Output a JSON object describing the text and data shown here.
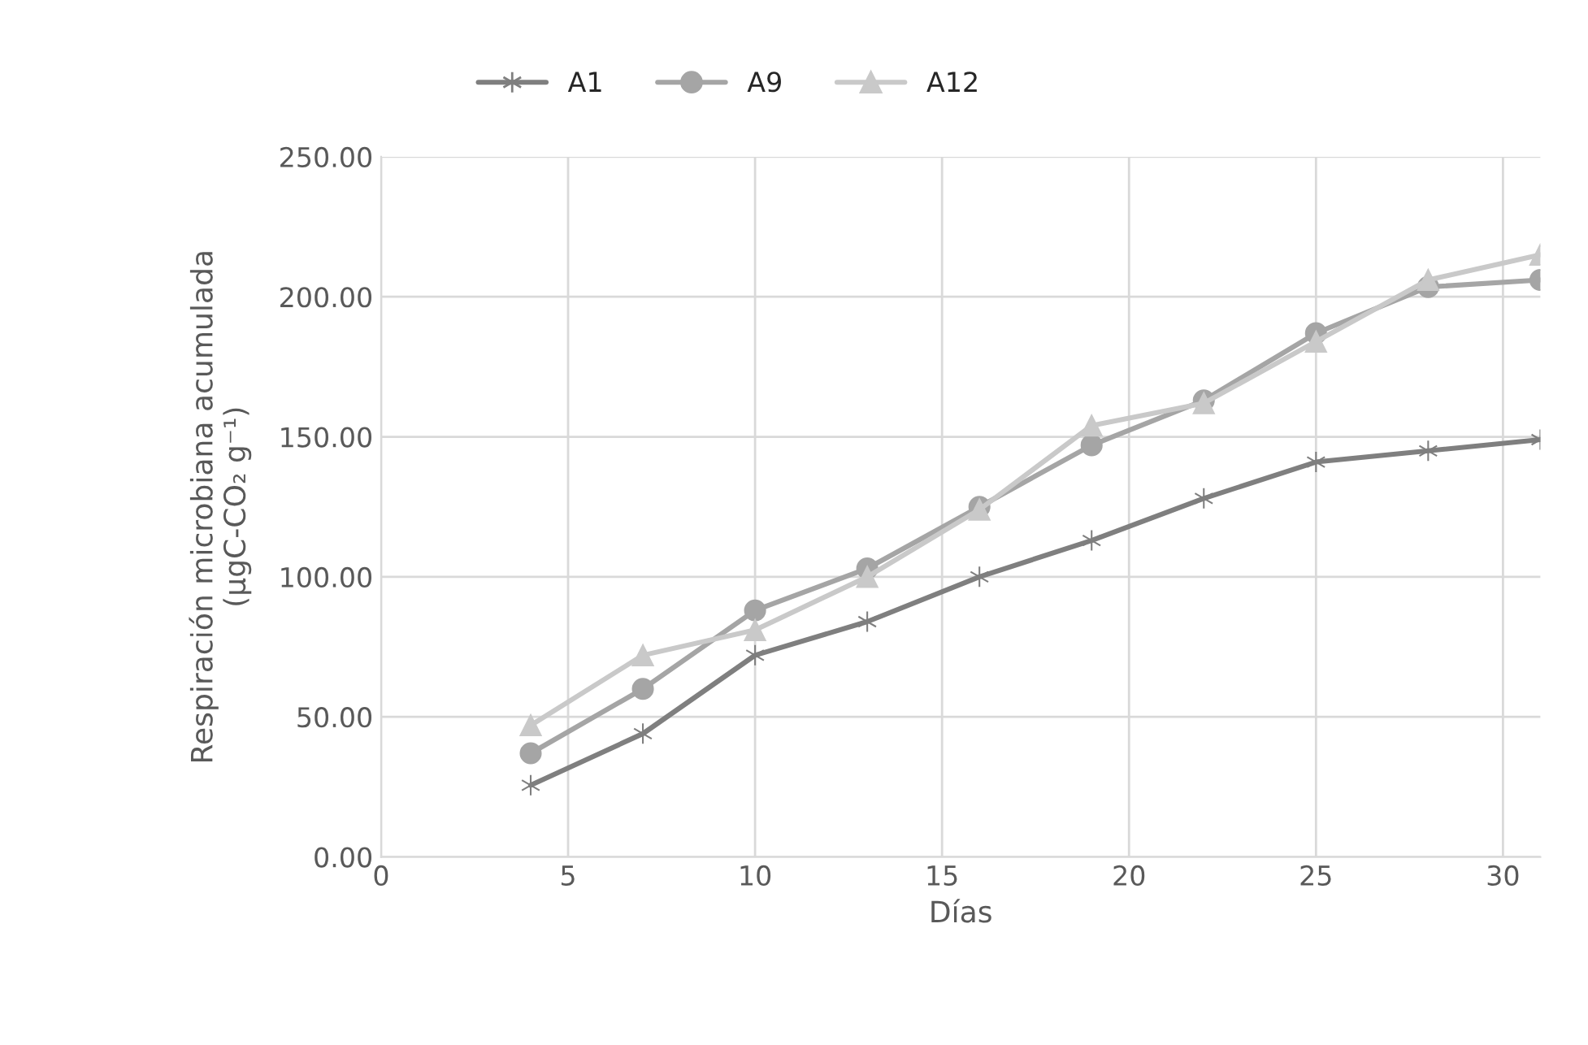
{
  "chart_data": {
    "type": "line",
    "xlabel": "Días",
    "ylabel": "Respiración microbiana acumulada\n(µgC-CO₂ g⁻¹)",
    "x": [
      4,
      7,
      10,
      13,
      16,
      19,
      22,
      25,
      28,
      31
    ],
    "series": [
      {
        "name": "A1",
        "color": "#7f7f7f",
        "marker": "cross",
        "values": [
          25.6,
          44,
          72,
          84,
          100,
          113,
          128,
          141,
          145,
          149
        ]
      },
      {
        "name": "A9",
        "color": "#a5a5a5",
        "marker": "circle",
        "values": [
          37,
          60,
          88,
          103,
          125,
          147,
          163,
          187,
          203.5,
          206
        ]
      },
      {
        "name": "A12",
        "color": "#c9c9c9",
        "marker": "triangle",
        "values": [
          47,
          72,
          81,
          100,
          124,
          154,
          162,
          184,
          206,
          215
        ]
      }
    ],
    "xlim": [
      0,
      31
    ],
    "xticks": [
      0,
      5,
      10,
      15,
      20,
      25,
      30
    ],
    "ylim": [
      0,
      250
    ],
    "yticks": [
      {
        "value": 0,
        "label": "0.00"
      },
      {
        "value": 50,
        "label": "50.00"
      },
      {
        "value": 100,
        "label": "100.00"
      },
      {
        "value": 150,
        "label": "150.00"
      },
      {
        "value": 200,
        "label": "200.00"
      },
      {
        "value": 250,
        "label": "250.00"
      }
    ],
    "grid": true,
    "legend": "top",
    "line_style": "solid"
  }
}
